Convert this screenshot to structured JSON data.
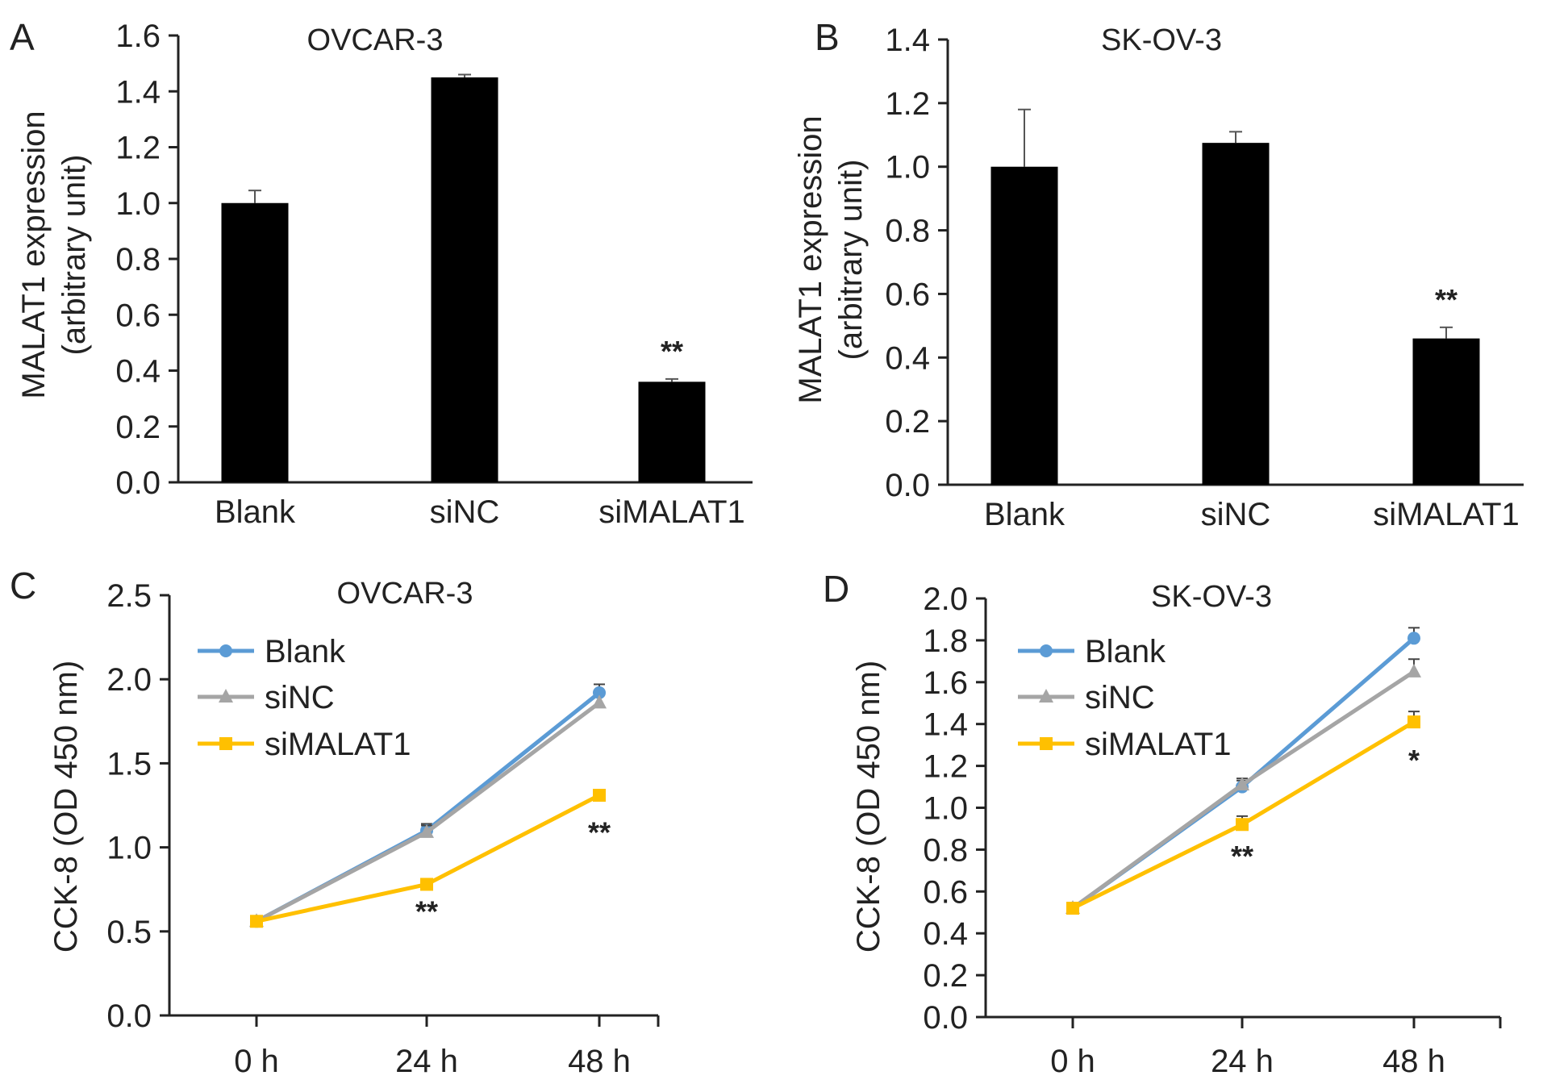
{
  "figure": {
    "panels": [
      "A",
      "B",
      "C",
      "D"
    ]
  },
  "chart_data": [
    {
      "panel": "A",
      "type": "bar",
      "title": "OVCAR-3",
      "ylabel": "MALAT1 expression\n(arbitrary unit)",
      "ylabel_lines": [
        "MALAT1 expression",
        "(arbitrary unit)"
      ],
      "xlabel": "",
      "categories": [
        "Blank",
        "siNC",
        "siMALAT1"
      ],
      "values": [
        1.0,
        1.45,
        0.36
      ],
      "errors": [
        0.045,
        0.01,
        0.01
      ],
      "significance": [
        "",
        "",
        "**"
      ],
      "ylim": [
        0.0,
        1.6
      ],
      "yticks": [
        "0.0",
        "0.2",
        "0.4",
        "0.6",
        "0.8",
        "1.0",
        "1.2",
        "1.4",
        "1.6"
      ],
      "bar_color": "#000000",
      "grid": false
    },
    {
      "panel": "B",
      "type": "bar",
      "title": "SK-OV-3",
      "ylabel": "MALAT1 expression\n(arbitrary unit)",
      "ylabel_lines": [
        "MALAT1 expression",
        "(arbitrary unit)"
      ],
      "xlabel": "",
      "categories": [
        "Blank",
        "siNC",
        "siMALAT1"
      ],
      "values": [
        1.0,
        1.075,
        0.46
      ],
      "errors": [
        0.18,
        0.035,
        0.035
      ],
      "significance": [
        "",
        "",
        "**"
      ],
      "ylim": [
        0.0,
        1.4
      ],
      "yticks": [
        "0.0",
        "0.2",
        "0.4",
        "0.6",
        "0.8",
        "1.0",
        "1.2",
        "1.4"
      ],
      "bar_color": "#000000",
      "grid": false
    },
    {
      "panel": "C",
      "type": "line",
      "title": "OVCAR-3",
      "ylabel": "CCK-8 (OD 450 nm)",
      "xlabel": "",
      "categories": [
        "0 h",
        "24 h",
        "48 h"
      ],
      "series": [
        {
          "name": "Blank",
          "color": "#5B9BD5",
          "marker": "circle",
          "values": [
            0.56,
            1.1,
            1.92
          ],
          "errors": [
            0.0,
            0.04,
            0.05
          ]
        },
        {
          "name": "siNC",
          "color": "#A5A5A5",
          "marker": "triangle",
          "values": [
            0.56,
            1.09,
            1.86
          ],
          "errors": [
            0.0,
            0.04,
            0.0
          ]
        },
        {
          "name": "siMALAT1",
          "color": "#FFC000",
          "marker": "square",
          "values": [
            0.56,
            0.78,
            1.31
          ],
          "errors": [
            0.0,
            0.0,
            0.0
          ]
        }
      ],
      "significance": [
        {
          "category": "24 h",
          "text": "**",
          "y": 0.56
        },
        {
          "category": "48 h",
          "text": "**",
          "y": 1.03
        }
      ],
      "ylim": [
        0.0,
        2.5
      ],
      "yticks": [
        "0.0",
        "0.5",
        "1.0",
        "1.5",
        "2.0",
        "2.5"
      ],
      "legend": "top-left",
      "grid": false
    },
    {
      "panel": "D",
      "type": "line",
      "title": "SK-OV-3",
      "ylabel": "CCK-8 (OD 450 nm)",
      "xlabel": "",
      "categories": [
        "0 h",
        "24 h",
        "48 h"
      ],
      "series": [
        {
          "name": "Blank",
          "color": "#5B9BD5",
          "marker": "circle",
          "values": [
            0.52,
            1.1,
            1.81
          ],
          "errors": [
            0.0,
            0.03,
            0.05
          ]
        },
        {
          "name": "siNC",
          "color": "#A5A5A5",
          "marker": "triangle",
          "values": [
            0.52,
            1.11,
            1.65
          ],
          "errors": [
            0.0,
            0.03,
            0.06
          ]
        },
        {
          "name": "siMALAT1",
          "color": "#FFC000",
          "marker": "square",
          "values": [
            0.52,
            0.92,
            1.41
          ],
          "errors": [
            0.0,
            0.04,
            0.05
          ]
        }
      ],
      "significance": [
        {
          "category": "24 h",
          "text": "**",
          "y": 0.72
        },
        {
          "category": "48 h",
          "text": "*",
          "y": 1.18
        }
      ],
      "ylim": [
        0.0,
        2.0
      ],
      "yticks": [
        "0.0",
        "0.2",
        "0.4",
        "0.6",
        "0.8",
        "1.0",
        "1.2",
        "1.4",
        "1.6",
        "1.8",
        "2.0"
      ],
      "legend": "top-left",
      "grid": false
    }
  ]
}
